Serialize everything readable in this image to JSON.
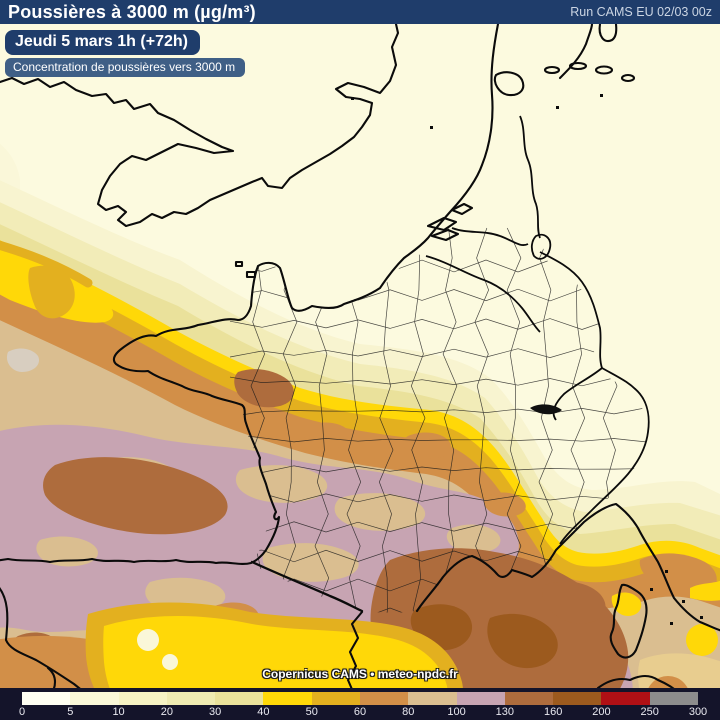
{
  "header": {
    "title": "Poussières à 3000 m (µg/m³)",
    "run": "Run CAMS EU 02/03 00z"
  },
  "badges": {
    "datetime": "Jeudi 5 mars 1h (+72h)",
    "subtitle": "Concentration de poussières vers 3000 m"
  },
  "watermark": "Copernicus CAMS • meteo-npdc.fr",
  "legend": {
    "unit": "µg/m³",
    "tick_labels": [
      "0",
      "5",
      "10",
      "20",
      "30",
      "40",
      "50",
      "60",
      "80",
      "100",
      "130",
      "160",
      "200",
      "250",
      "300"
    ],
    "segment_colors": [
      "#FFFFF2",
      "#FAF8D8",
      "#F6F3C4",
      "#EFEBB2",
      "#EAE29B",
      "#FFD808",
      "#E3B01F",
      "#D28F48",
      "#DABE90",
      "#C7A4B2",
      "#AE6C3D",
      "#9C5A1E",
      "#B01015",
      "#8D8D8D"
    ]
  },
  "colors": {
    "header_bg": "#1F3D6B",
    "badge_subtitle_bg": "#3F5F86",
    "footer_bg": "#14142A",
    "map_background": "#FCFADF"
  },
  "map": {
    "description": "CAMS EU dust concentration forecast map over France at 3000 m",
    "region": "France / Western Europe"
  }
}
